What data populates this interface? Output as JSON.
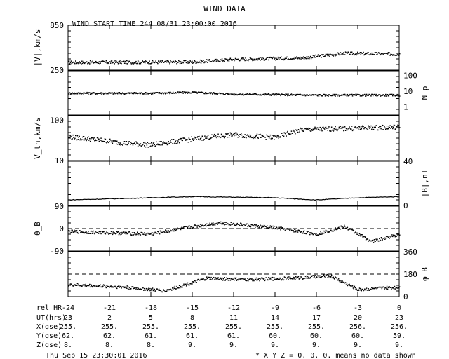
{
  "header": {
    "title": "WIND DATA",
    "start_time": "WIND START TIME 244 08/31 23:00:00 2016"
  },
  "chart_data": [
    {
      "type": "scatter",
      "ylabel": "|V|,km/s",
      "ylabel_side": "left",
      "ylim": [
        250,
        850
      ],
      "ticks_left": [
        "850",
        "250"
      ],
      "x": [
        -24,
        0
      ],
      "series": [
        {
          "values_trend": [
            [
              -24,
              360
            ],
            [
              -15,
              365
            ],
            [
              -12,
              400
            ],
            [
              -7,
              420
            ],
            [
              -4,
              480
            ],
            [
              0,
              470
            ]
          ]
        }
      ]
    },
    {
      "type": "scatter",
      "ylabel": "N_p",
      "ylabel_side": "right",
      "scale": "log",
      "ylim": [
        0.3,
        200
      ],
      "ticks_right": [
        "100",
        "10",
        "1"
      ],
      "series": [
        {
          "values_trend": [
            [
              -24,
              8
            ],
            [
              -18,
              8
            ],
            [
              -15,
              9
            ],
            [
              -12,
              7
            ],
            [
              -6,
              6
            ],
            [
              0,
              6
            ]
          ]
        }
      ]
    },
    {
      "type": "scatter",
      "ylabel": "V_th,km/s",
      "ylabel_side": "left",
      "scale": "log",
      "ylim": [
        10,
        130
      ],
      "ticks_left": [
        "100",
        "10"
      ],
      "series": [
        {
          "values_trend": [
            [
              -24,
              40
            ],
            [
              -20,
              28
            ],
            [
              -18,
              25
            ],
            [
              -12,
              45
            ],
            [
              -9,
              38
            ],
            [
              -7,
              60
            ],
            [
              0,
              70
            ]
          ]
        }
      ]
    },
    {
      "type": "line",
      "ylabel": "|B|,nT",
      "ylabel_side": "right",
      "ylim": [
        0,
        40
      ],
      "ticks_right": [
        "40",
        "0"
      ],
      "series": [
        {
          "values_trend": [
            [
              -24,
              5
            ],
            [
              -18,
              7
            ],
            [
              -15,
              8
            ],
            [
              -9,
              7
            ],
            [
              -6,
              5
            ],
            [
              -3,
              7
            ],
            [
              0,
              8
            ]
          ]
        }
      ]
    },
    {
      "type": "scatter",
      "ylabel": "θ_B",
      "ylabel_side": "left",
      "ylim": [
        -90,
        90
      ],
      "ticks_left": [
        "90",
        "0",
        "-90"
      ],
      "reference_line": 0,
      "series": [
        {
          "values_trend": [
            [
              -24,
              -10
            ],
            [
              -18,
              -20
            ],
            [
              -15,
              10
            ],
            [
              -13,
              25
            ],
            [
              -9,
              5
            ],
            [
              -6,
              -20
            ],
            [
              -4,
              10
            ],
            [
              -2,
              -50
            ],
            [
              0,
              -20
            ]
          ]
        }
      ]
    },
    {
      "type": "scatter",
      "ylabel": "φ_B",
      "ylabel_side": "right",
      "ylim": [
        0,
        360
      ],
      "ticks_right": [
        "360",
        "180",
        "0"
      ],
      "reference_line": 180,
      "series": [
        {
          "values_trend": [
            [
              -24,
              100
            ],
            [
              -20,
              80
            ],
            [
              -17,
              50
            ],
            [
              -14,
              150
            ],
            [
              -11,
              140
            ],
            [
              -8,
              150
            ],
            [
              -5,
              170
            ],
            [
              -3,
              60
            ],
            [
              0,
              80
            ]
          ]
        }
      ]
    }
  ],
  "time_axis": {
    "rows": [
      {
        "label": "rel HR",
        "values": [
          "-24",
          "-21",
          "-18",
          "-15",
          "-12",
          "-9",
          "-6",
          "-3",
          "0"
        ]
      },
      {
        "label": "UT(hrs)",
        "values": [
          "23",
          "2",
          "5",
          "8",
          "11",
          "14",
          "17",
          "20",
          "23"
        ]
      },
      {
        "label": "X(gse)",
        "values": [
          "255.",
          "255.",
          "255.",
          "255.",
          "255.",
          "255.",
          "255.",
          "256.",
          "256."
        ]
      },
      {
        "label": "Y(gse)",
        "values": [
          "62.",
          "62.",
          "61.",
          "61.",
          "61.",
          "60.",
          "60.",
          "60.",
          "59."
        ]
      },
      {
        "label": "Z(gse)",
        "values": [
          "8.",
          "8.",
          "8.",
          "9.",
          "9.",
          "9.",
          "9.",
          "9.",
          "9."
        ]
      }
    ]
  },
  "footer": {
    "timestamp": "Thu Sep 15 23:30:01 2016",
    "note": "* X Y Z = 0. 0. 0. means no data shown"
  }
}
